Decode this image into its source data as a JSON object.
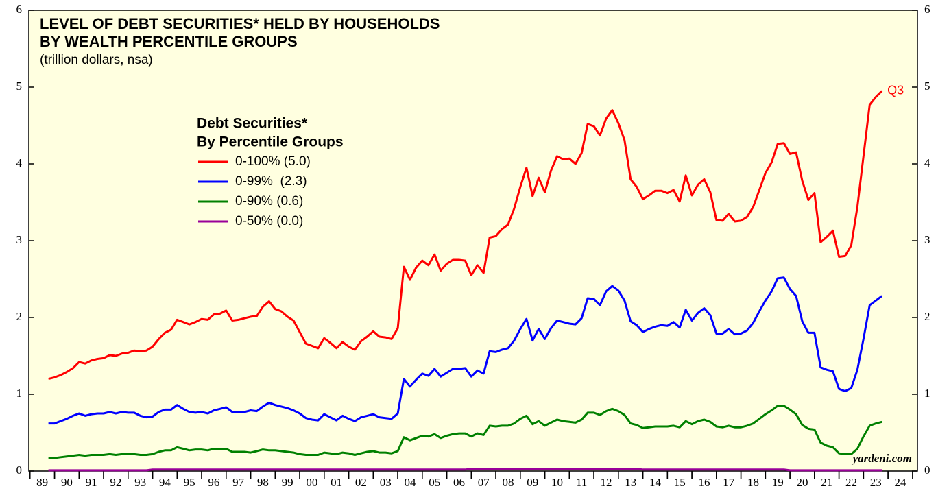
{
  "chart_data": {
    "type": "line",
    "title": [
      "LEVEL OF DEBT SECURITIES* HELD BY HOUSEHOLDS",
      "BY WEALTH PERCENTILE GROUPS"
    ],
    "subtitle": "(trillion dollars, nsa)",
    "legend_title": [
      "Debt Securities*",
      "By Percentile Groups"
    ],
    "legend_position": "upper left",
    "annotation": "Q3",
    "watermark": "yardeni.com",
    "xlim": [
      1988.95,
      2025.2
    ],
    "ylim": [
      0,
      6
    ],
    "yticks": [
      0,
      1,
      2,
      3,
      4,
      5,
      6
    ],
    "xticks": [
      {
        "value": 1989.5,
        "label": "89"
      },
      {
        "value": 1990.5,
        "label": "90"
      },
      {
        "value": 1991.5,
        "label": "91"
      },
      {
        "value": 1992.5,
        "label": "92"
      },
      {
        "value": 1993.5,
        "label": "93"
      },
      {
        "value": 1994.5,
        "label": "94"
      },
      {
        "value": 1995.5,
        "label": "95"
      },
      {
        "value": 1996.5,
        "label": "96"
      },
      {
        "value": 1997.5,
        "label": "97"
      },
      {
        "value": 1998.5,
        "label": "98"
      },
      {
        "value": 1999.5,
        "label": "99"
      },
      {
        "value": 2000.5,
        "label": "00"
      },
      {
        "value": 2001.5,
        "label": "01"
      },
      {
        "value": 2002.5,
        "label": "02"
      },
      {
        "value": 2003.5,
        "label": "03"
      },
      {
        "value": 2004.5,
        "label": "04"
      },
      {
        "value": 2005.5,
        "label": "05"
      },
      {
        "value": 2006.5,
        "label": "06"
      },
      {
        "value": 2007.5,
        "label": "07"
      },
      {
        "value": 2008.5,
        "label": "08"
      },
      {
        "value": 2009.5,
        "label": "09"
      },
      {
        "value": 2010.5,
        "label": "10"
      },
      {
        "value": 2011.5,
        "label": "11"
      },
      {
        "value": 2012.5,
        "label": "12"
      },
      {
        "value": 2013.5,
        "label": "13"
      },
      {
        "value": 2014.5,
        "label": "14"
      },
      {
        "value": 2015.5,
        "label": "15"
      },
      {
        "value": 2016.5,
        "label": "16"
      },
      {
        "value": 2017.5,
        "label": "17"
      },
      {
        "value": 2018.5,
        "label": "18"
      },
      {
        "value": 2019.5,
        "label": "19"
      },
      {
        "value": 2020.5,
        "label": "20"
      },
      {
        "value": 2021.5,
        "label": "21"
      },
      {
        "value": 2022.5,
        "label": "22"
      },
      {
        "value": 2023.5,
        "label": "23"
      },
      {
        "value": 2024.5,
        "label": "24"
      }
    ],
    "x": [
      1989.75,
      1990,
      1990.25,
      1990.5,
      1990.75,
      1991,
      1991.25,
      1991.5,
      1991.75,
      1992,
      1992.25,
      1992.5,
      1992.75,
      1993,
      1993.25,
      1993.5,
      1993.75,
      1994,
      1994.25,
      1994.5,
      1994.75,
      1995,
      1995.25,
      1995.5,
      1995.75,
      1996,
      1996.25,
      1996.5,
      1996.75,
      1997,
      1997.25,
      1997.5,
      1997.75,
      1998,
      1998.25,
      1998.5,
      1998.75,
      1999,
      1999.25,
      1999.5,
      1999.75,
      2000,
      2000.25,
      2000.5,
      2000.75,
      2001,
      2001.25,
      2001.5,
      2001.75,
      2002,
      2002.25,
      2002.5,
      2002.75,
      2003,
      2003.25,
      2003.5,
      2003.75,
      2004,
      2004.25,
      2004.5,
      2004.75,
      2005,
      2005.25,
      2005.5,
      2005.75,
      2006,
      2006.25,
      2006.5,
      2006.75,
      2007,
      2007.25,
      2007.5,
      2007.75,
      2008,
      2008.25,
      2008.5,
      2008.75,
      2009,
      2009.25,
      2009.5,
      2009.75,
      2010,
      2010.25,
      2010.5,
      2010.75,
      2011,
      2011.25,
      2011.5,
      2011.75,
      2012,
      2012.25,
      2012.5,
      2012.75,
      2013,
      2013.25,
      2013.5,
      2013.75,
      2014,
      2014.25,
      2014.5,
      2014.75,
      2015,
      2015.25,
      2015.5,
      2015.75,
      2016,
      2016.25,
      2016.5,
      2016.75,
      2017,
      2017.25,
      2017.5,
      2017.75,
      2018,
      2018.25,
      2018.5,
      2018.75,
      2019,
      2019.25,
      2019.5,
      2019.75,
      2020,
      2020.25,
      2020.5,
      2020.75,
      2021,
      2021.25,
      2021.5,
      2021.75,
      2022,
      2022.25,
      2022.5,
      2022.75,
      2023,
      2023.25,
      2023.5,
      2023.75
    ],
    "series": [
      {
        "name": "0-100% (5.0)",
        "color": "#ff0000",
        "values": [
          1.2,
          1.22,
          1.25,
          1.29,
          1.34,
          1.42,
          1.4,
          1.44,
          1.46,
          1.47,
          1.51,
          1.5,
          1.53,
          1.54,
          1.57,
          1.56,
          1.57,
          1.62,
          1.72,
          1.8,
          1.84,
          1.97,
          1.94,
          1.91,
          1.94,
          1.98,
          1.97,
          2.04,
          2.05,
          2.09,
          1.96,
          1.97,
          1.99,
          2.01,
          2.02,
          2.14,
          2.21,
          2.11,
          2.08,
          2.01,
          1.96,
          1.81,
          1.66,
          1.63,
          1.6,
          1.73,
          1.67,
          1.6,
          1.68,
          1.62,
          1.58,
          1.69,
          1.75,
          1.82,
          1.75,
          1.74,
          1.72,
          1.86,
          2.66,
          2.49,
          2.65,
          2.74,
          2.68,
          2.82,
          2.61,
          2.7,
          2.75,
          2.75,
          2.74,
          2.55,
          2.68,
          2.58,
          3.04,
          3.06,
          3.15,
          3.21,
          3.42,
          3.7,
          3.95,
          3.58,
          3.82,
          3.63,
          3.91,
          4.1,
          4.06,
          4.07,
          4.0,
          4.14,
          4.52,
          4.49,
          4.37,
          4.59,
          4.7,
          4.53,
          4.31,
          3.8,
          3.7,
          3.54,
          3.59,
          3.65,
          3.65,
          3.62,
          3.66,
          3.51,
          3.85,
          3.59,
          3.73,
          3.8,
          3.63,
          3.27,
          3.26,
          3.35,
          3.25,
          3.26,
          3.31,
          3.44,
          3.66,
          3.88,
          4.02,
          4.26,
          4.27,
          4.13,
          4.15,
          3.78,
          3.53,
          3.62,
          2.98,
          3.05,
          3.13,
          2.79,
          2.8,
          2.94,
          3.44,
          4.1,
          4.77,
          4.87,
          4.95
        ]
      },
      {
        "name": "0-99%  (2.3)",
        "color": "#0000ff",
        "values": [
          0.62,
          0.62,
          0.65,
          0.68,
          0.72,
          0.75,
          0.72,
          0.74,
          0.75,
          0.75,
          0.77,
          0.75,
          0.77,
          0.76,
          0.76,
          0.72,
          0.7,
          0.71,
          0.77,
          0.8,
          0.8,
          0.86,
          0.81,
          0.77,
          0.76,
          0.77,
          0.75,
          0.79,
          0.81,
          0.83,
          0.77,
          0.77,
          0.77,
          0.79,
          0.78,
          0.84,
          0.89,
          0.86,
          0.84,
          0.82,
          0.79,
          0.75,
          0.69,
          0.67,
          0.66,
          0.74,
          0.7,
          0.66,
          0.72,
          0.68,
          0.65,
          0.7,
          0.72,
          0.74,
          0.7,
          0.69,
          0.68,
          0.75,
          1.2,
          1.1,
          1.19,
          1.27,
          1.24,
          1.33,
          1.23,
          1.28,
          1.33,
          1.33,
          1.34,
          1.23,
          1.31,
          1.27,
          1.56,
          1.55,
          1.58,
          1.6,
          1.7,
          1.85,
          1.98,
          1.7,
          1.85,
          1.72,
          1.86,
          1.96,
          1.94,
          1.92,
          1.91,
          1.99,
          2.25,
          2.24,
          2.16,
          2.34,
          2.41,
          2.35,
          2.22,
          1.95,
          1.9,
          1.81,
          1.85,
          1.88,
          1.9,
          1.89,
          1.94,
          1.87,
          2.1,
          1.96,
          2.06,
          2.12,
          2.03,
          1.79,
          1.79,
          1.85,
          1.78,
          1.79,
          1.83,
          1.93,
          2.08,
          2.22,
          2.34,
          2.51,
          2.52,
          2.37,
          2.28,
          1.95,
          1.8,
          1.8,
          1.35,
          1.32,
          1.3,
          1.07,
          1.04,
          1.08,
          1.32,
          1.72,
          2.16,
          2.22,
          2.28
        ]
      },
      {
        "name": "0-90% (0.6)",
        "color": "#008000",
        "values": [
          0.17,
          0.17,
          0.18,
          0.19,
          0.2,
          0.21,
          0.2,
          0.21,
          0.21,
          0.21,
          0.22,
          0.21,
          0.22,
          0.22,
          0.22,
          0.21,
          0.21,
          0.22,
          0.25,
          0.27,
          0.27,
          0.31,
          0.29,
          0.27,
          0.28,
          0.28,
          0.27,
          0.29,
          0.29,
          0.29,
          0.25,
          0.25,
          0.25,
          0.24,
          0.26,
          0.28,
          0.27,
          0.27,
          0.26,
          0.25,
          0.24,
          0.22,
          0.21,
          0.21,
          0.21,
          0.24,
          0.23,
          0.22,
          0.24,
          0.23,
          0.21,
          0.23,
          0.25,
          0.26,
          0.24,
          0.24,
          0.23,
          0.26,
          0.44,
          0.4,
          0.43,
          0.46,
          0.45,
          0.48,
          0.43,
          0.46,
          0.48,
          0.49,
          0.49,
          0.45,
          0.49,
          0.47,
          0.59,
          0.58,
          0.59,
          0.59,
          0.62,
          0.68,
          0.72,
          0.61,
          0.65,
          0.59,
          0.63,
          0.67,
          0.65,
          0.64,
          0.63,
          0.67,
          0.76,
          0.76,
          0.73,
          0.78,
          0.81,
          0.78,
          0.73,
          0.62,
          0.6,
          0.56,
          0.57,
          0.58,
          0.58,
          0.58,
          0.59,
          0.57,
          0.65,
          0.61,
          0.65,
          0.67,
          0.64,
          0.58,
          0.57,
          0.59,
          0.57,
          0.57,
          0.59,
          0.62,
          0.68,
          0.74,
          0.79,
          0.85,
          0.85,
          0.8,
          0.74,
          0.6,
          0.55,
          0.54,
          0.37,
          0.33,
          0.31,
          0.23,
          0.22,
          0.22,
          0.29,
          0.45,
          0.59,
          0.62,
          0.64
        ]
      },
      {
        "name": "0-50% (0.0)",
        "color": "#990099",
        "values": [
          0.01,
          0.01,
          0.01,
          0.01,
          0.01,
          0.01,
          0.01,
          0.01,
          0.01,
          0.01,
          0.01,
          0.01,
          0.01,
          0.01,
          0.01,
          0.01,
          0.01,
          0.02,
          0.02,
          0.02,
          0.02,
          0.02,
          0.02,
          0.02,
          0.02,
          0.02,
          0.02,
          0.02,
          0.02,
          0.02,
          0.02,
          0.02,
          0.02,
          0.02,
          0.02,
          0.02,
          0.02,
          0.02,
          0.02,
          0.02,
          0.02,
          0.02,
          0.02,
          0.02,
          0.02,
          0.02,
          0.02,
          0.02,
          0.02,
          0.02,
          0.02,
          0.02,
          0.02,
          0.02,
          0.02,
          0.02,
          0.02,
          0.02,
          0.02,
          0.02,
          0.02,
          0.02,
          0.02,
          0.02,
          0.02,
          0.02,
          0.02,
          0.02,
          0.02,
          0.03,
          0.03,
          0.03,
          0.03,
          0.03,
          0.03,
          0.03,
          0.03,
          0.03,
          0.03,
          0.03,
          0.03,
          0.03,
          0.03,
          0.03,
          0.03,
          0.03,
          0.03,
          0.03,
          0.03,
          0.03,
          0.03,
          0.03,
          0.03,
          0.03,
          0.03,
          0.03,
          0.03,
          0.02,
          0.02,
          0.02,
          0.02,
          0.02,
          0.02,
          0.02,
          0.02,
          0.02,
          0.02,
          0.02,
          0.02,
          0.02,
          0.02,
          0.02,
          0.02,
          0.02,
          0.02,
          0.02,
          0.02,
          0.02,
          0.02,
          0.02,
          0.02,
          0.01,
          0.01,
          0.01,
          0.01,
          0.01,
          0.01,
          0.01,
          0.01,
          0.01,
          0.01,
          0.01,
          0.01,
          0.01,
          0.01,
          0.01,
          0.01
        ]
      }
    ]
  }
}
